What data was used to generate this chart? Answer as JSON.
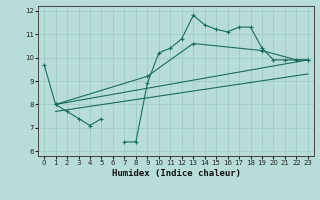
{
  "xlabel": "Humidex (Indice chaleur)",
  "xlim": [
    -0.5,
    23.5
  ],
  "ylim": [
    5.8,
    12.2
  ],
  "xticks": [
    0,
    1,
    2,
    3,
    4,
    5,
    6,
    7,
    8,
    9,
    10,
    11,
    12,
    13,
    14,
    15,
    16,
    17,
    18,
    19,
    20,
    21,
    22,
    23
  ],
  "yticks": [
    6,
    7,
    8,
    9,
    10,
    11,
    12
  ],
  "bg_color": "#b8ddd8",
  "grid_color": "#9eccc6",
  "line_color": "#1a6b60",
  "line1_x": [
    0,
    1,
    2,
    3,
    4,
    5,
    7,
    8,
    9,
    10,
    11,
    12,
    13,
    14,
    15,
    16,
    17,
    18,
    19,
    20,
    21,
    22,
    23
  ],
  "line1_y": [
    9.7,
    8.0,
    7.7,
    7.4,
    7.1,
    7.4,
    6.4,
    6.4,
    8.9,
    10.2,
    10.4,
    10.8,
    11.8,
    11.4,
    11.2,
    11.1,
    11.3,
    11.3,
    10.4,
    9.9,
    9.9,
    9.9,
    9.9
  ],
  "line2_x": [
    1,
    9,
    13,
    19,
    22,
    23
  ],
  "line2_y": [
    8.0,
    9.2,
    10.6,
    10.3,
    9.9,
    9.9
  ],
  "line3_x": [
    1,
    23
  ],
  "line3_y": [
    8.0,
    9.9
  ],
  "line4_x": [
    1,
    23
  ],
  "line4_y": [
    7.7,
    9.3
  ]
}
